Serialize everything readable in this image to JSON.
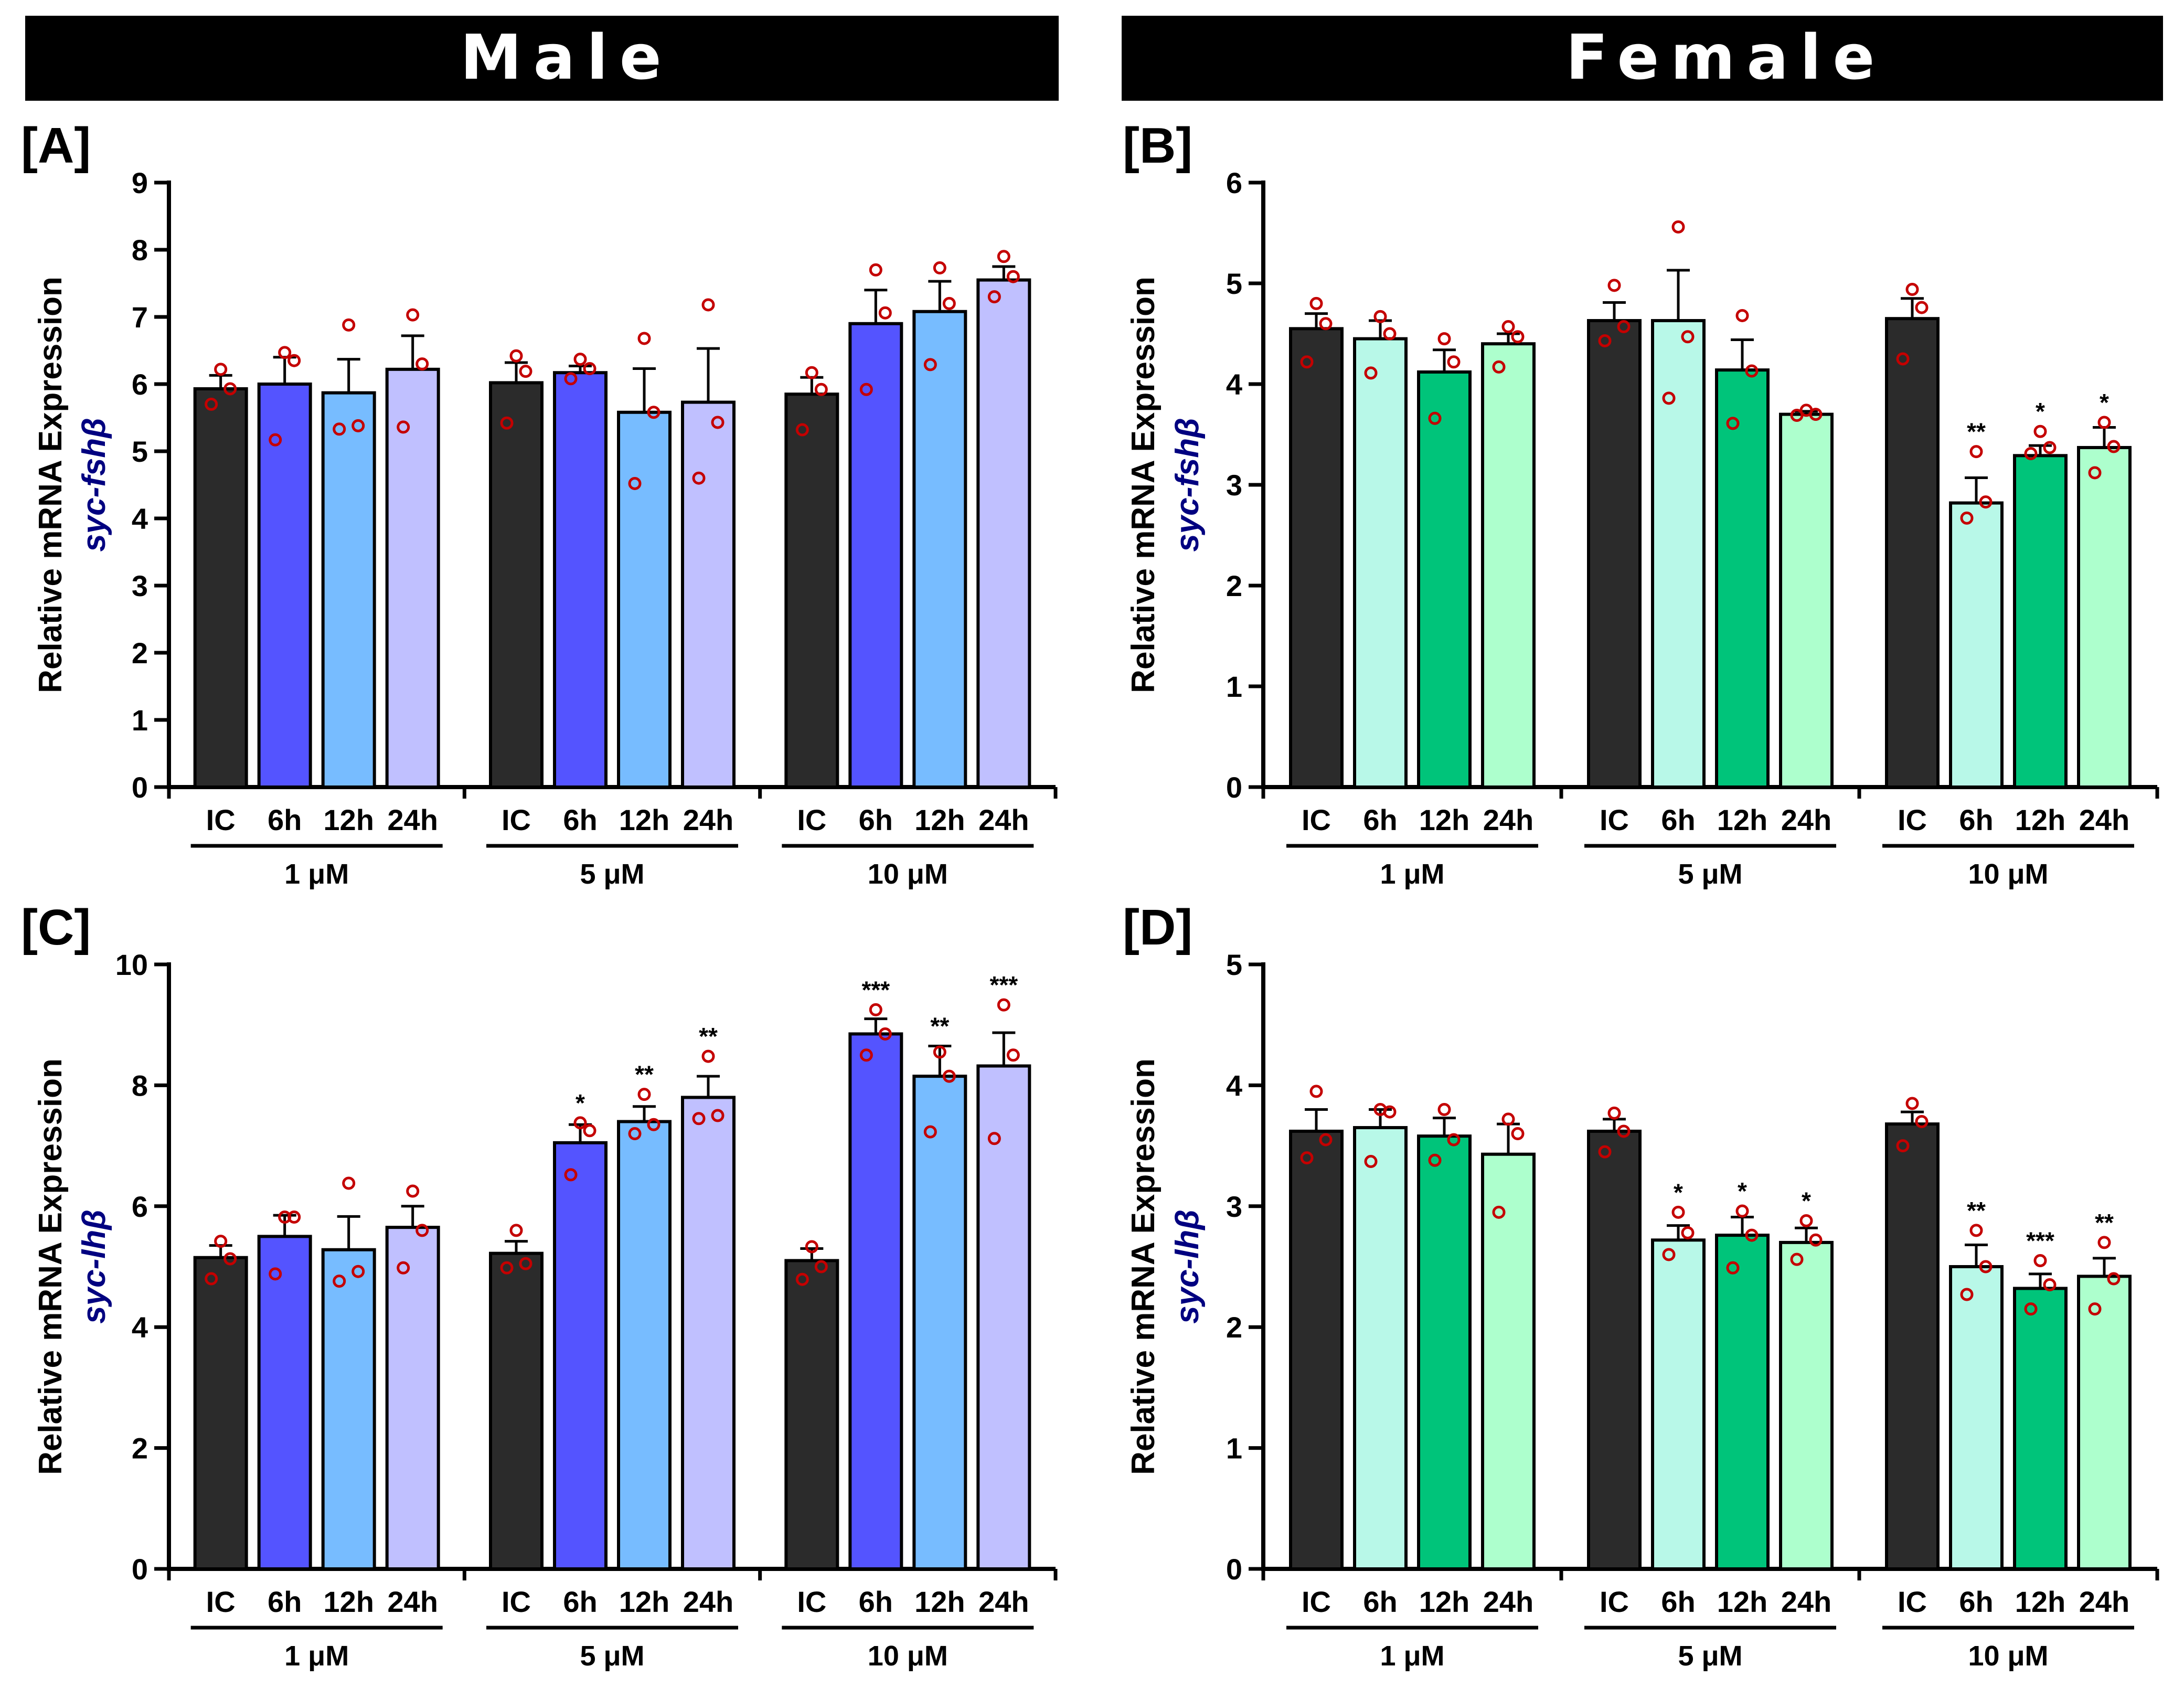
{
  "headers": [
    "Male",
    "Female"
  ],
  "chart_data": [
    {
      "type": "bar",
      "panel": "[A]",
      "title": "Male",
      "ylabel": "Relative mRNA Expression",
      "gene": "syc-fshβ",
      "ylim": [
        0,
        9
      ],
      "yticks": [
        "0",
        "1",
        "2",
        "3",
        "4",
        "5",
        "6",
        "7",
        "8",
        "9"
      ],
      "categories": [
        "IC",
        "6h",
        "12h",
        "24h"
      ],
      "groups": [
        "1 μM",
        "5 μM",
        "10 μM"
      ],
      "colors": [
        "#2b2b2b",
        "#5454ff",
        "#77bcff",
        "#c0c0ff"
      ],
      "values": [
        [
          5.93,
          6.0,
          5.87,
          6.22
        ],
        [
          6.02,
          6.17,
          5.58,
          5.73
        ],
        [
          5.85,
          6.9,
          7.08,
          7.55
        ]
      ],
      "errors": [
        [
          0.2,
          0.4,
          0.5,
          0.5
        ],
        [
          0.3,
          0.1,
          0.65,
          0.8
        ],
        [
          0.25,
          0.5,
          0.45,
          0.2
        ]
      ],
      "points": [
        [
          [
            6.22,
            5.93,
            5.7
          ],
          [
            6.47,
            6.35,
            5.17
          ],
          [
            6.88,
            5.38,
            5.33
          ],
          [
            7.03,
            6.3,
            5.36
          ]
        ],
        [
          [
            6.42,
            6.19,
            5.42
          ],
          [
            6.37,
            6.23,
            6.08
          ],
          [
            6.68,
            5.58,
            4.52
          ],
          [
            7.18,
            5.43,
            4.6
          ]
        ],
        [
          [
            6.17,
            5.92,
            5.32
          ],
          [
            7.7,
            7.06,
            5.92
          ],
          [
            7.73,
            7.2,
            6.29
          ],
          [
            7.9,
            7.6,
            7.3
          ]
        ]
      ],
      "sig": [
        [
          "",
          "",
          "",
          ""
        ],
        [
          "",
          "",
          "",
          ""
        ],
        [
          "",
          "",
          "",
          ""
        ]
      ]
    },
    {
      "type": "bar",
      "panel": "[B]",
      "title": "Female",
      "ylabel": "Relative mRNA Expression",
      "gene": "syc-fshβ",
      "ylim": [
        0,
        6
      ],
      "yticks": [
        "0",
        "1",
        "2",
        "3",
        "4",
        "5",
        "6"
      ],
      "categories": [
        "IC",
        "6h",
        "12h",
        "24h"
      ],
      "groups": [
        "1 μM",
        "5 μM",
        "10 μM"
      ],
      "colors": [
        "#2b2b2b",
        "#b8f8e8",
        "#00c47a",
        "#adffcd"
      ],
      "values": [
        [
          4.55,
          4.45,
          4.12,
          4.4
        ],
        [
          4.63,
          4.63,
          4.14,
          3.7
        ],
        [
          4.65,
          2.82,
          3.29,
          3.37
        ]
      ],
      "errors": [
        [
          0.15,
          0.18,
          0.22,
          0.1
        ],
        [
          0.18,
          0.5,
          0.3,
          0.03
        ],
        [
          0.2,
          0.25,
          0.1,
          0.2
        ]
      ],
      "points": [
        [
          [
            4.8,
            4.6,
            4.22
          ],
          [
            4.67,
            4.5,
            4.11
          ],
          [
            4.45,
            4.22,
            3.66
          ],
          [
            4.57,
            4.47,
            4.17
          ]
        ],
        [
          [
            4.98,
            4.57,
            4.43
          ],
          [
            5.56,
            4.47,
            3.86
          ],
          [
            4.68,
            4.13,
            3.61
          ],
          [
            3.74,
            3.7,
            3.69
          ]
        ],
        [
          [
            4.94,
            4.76,
            4.25
          ],
          [
            3.33,
            2.83,
            2.67
          ],
          [
            3.53,
            3.37,
            3.31
          ],
          [
            3.62,
            3.38,
            3.12
          ]
        ]
      ],
      "sig": [
        [
          "",
          "",
          "",
          ""
        ],
        [
          "",
          "",
          "",
          ""
        ],
        [
          "",
          "**",
          "*",
          "*"
        ]
      ]
    },
    {
      "type": "bar",
      "panel": "[C]",
      "title": "Male",
      "ylabel": "Relative mRNA Expression",
      "gene": "syc-lhβ",
      "ylim": [
        0,
        10
      ],
      "yticks": [
        "0",
        "2",
        "4",
        "6",
        "8",
        "10"
      ],
      "categories": [
        "IC",
        "6h",
        "12h",
        "24h"
      ],
      "groups": [
        "1 μM",
        "5 μM",
        "10 μM"
      ],
      "colors": [
        "#2b2b2b",
        "#5454ff",
        "#77bcff",
        "#c0c0ff"
      ],
      "values": [
        [
          5.15,
          5.5,
          5.28,
          5.65
        ],
        [
          5.22,
          7.05,
          7.4,
          7.8
        ],
        [
          5.1,
          8.85,
          8.15,
          8.32
        ]
      ],
      "errors": [
        [
          0.2,
          0.35,
          0.55,
          0.35
        ],
        [
          0.2,
          0.3,
          0.25,
          0.35
        ],
        [
          0.2,
          0.25,
          0.5,
          0.55
        ]
      ],
      "points": [
        [
          [
            5.42,
            5.13,
            4.8
          ],
          [
            5.82,
            5.82,
            4.88
          ],
          [
            6.38,
            4.92,
            4.76
          ],
          [
            6.25,
            5.6,
            4.98
          ]
        ],
        [
          [
            5.6,
            5.05,
            4.98
          ],
          [
            7.38,
            7.25,
            6.52
          ],
          [
            7.85,
            7.35,
            7.2
          ],
          [
            8.48,
            7.5,
            7.45
          ]
        ],
        [
          [
            5.33,
            5.0,
            4.79
          ],
          [
            9.25,
            8.85,
            8.5
          ],
          [
            8.55,
            8.15,
            7.23
          ],
          [
            9.33,
            8.5,
            7.12
          ]
        ]
      ],
      "sig": [
        [
          "",
          "",
          "",
          ""
        ],
        [
          "",
          "*",
          "**",
          "**"
        ],
        [
          "",
          "***",
          "**",
          "***"
        ]
      ]
    },
    {
      "type": "bar",
      "panel": "[D]",
      "title": "Female",
      "ylabel": "Relative mRNA Expression",
      "gene": "syc-lhβ",
      "ylim": [
        0,
        5
      ],
      "yticks": [
        "0",
        "1",
        "2",
        "3",
        "4",
        "5"
      ],
      "categories": [
        "IC",
        "6h",
        "12h",
        "24h"
      ],
      "groups": [
        "1 μM",
        "5 μM",
        "10 μM"
      ],
      "colors": [
        "#2b2b2b",
        "#b8f8e8",
        "#00c47a",
        "#adffcd"
      ],
      "values": [
        [
          3.62,
          3.65,
          3.58,
          3.43
        ],
        [
          3.62,
          2.72,
          2.76,
          2.7
        ],
        [
          3.68,
          2.5,
          2.32,
          2.42
        ]
      ],
      "errors": [
        [
          0.18,
          0.15,
          0.15,
          0.25
        ],
        [
          0.1,
          0.12,
          0.15,
          0.12
        ],
        [
          0.1,
          0.18,
          0.12,
          0.15
        ]
      ],
      "points": [
        [
          [
            3.95,
            3.55,
            3.4
          ],
          [
            3.8,
            3.78,
            3.37
          ],
          [
            3.8,
            3.55,
            3.38
          ],
          [
            3.72,
            3.6,
            2.95
          ]
        ],
        [
          [
            3.77,
            3.62,
            3.45
          ],
          [
            2.95,
            2.78,
            2.6
          ],
          [
            2.96,
            2.76,
            2.49
          ],
          [
            2.88,
            2.72,
            2.56
          ]
        ],
        [
          [
            3.85,
            3.7,
            3.5
          ],
          [
            2.8,
            2.5,
            2.27
          ],
          [
            2.55,
            2.35,
            2.15
          ],
          [
            2.7,
            2.4,
            2.15
          ]
        ]
      ],
      "sig": [
        [
          "",
          "",
          "",
          ""
        ],
        [
          "",
          "*",
          "*",
          "*"
        ],
        [
          "",
          "**",
          "***",
          "**"
        ]
      ]
    }
  ]
}
